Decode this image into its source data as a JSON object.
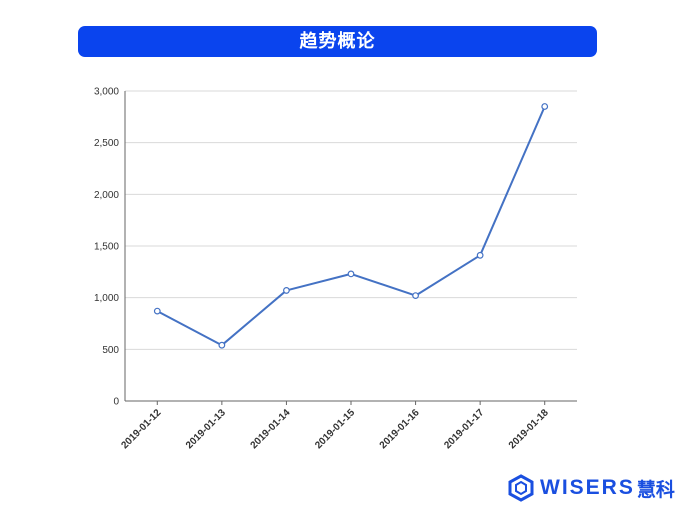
{
  "header": {
    "title": "趋势概论"
  },
  "chart_data": {
    "type": "line",
    "title": "",
    "xlabel": "",
    "ylabel": "",
    "categories": [
      "2019-01-12",
      "2019-01-13",
      "2019-01-14",
      "2019-01-15",
      "2019-01-16",
      "2019-01-17",
      "2019-01-18"
    ],
    "series": [
      {
        "values": [
          870,
          540,
          1070,
          1230,
          1020,
          1410,
          2850
        ]
      }
    ],
    "ylim": [
      0,
      3000
    ],
    "yticks": [
      0,
      500,
      1000,
      1500,
      2000,
      2500,
      3000
    ],
    "ytick_labels": [
      "0",
      "500",
      "1,000",
      "1,500",
      "2,000",
      "2,500",
      "3,000"
    ],
    "grid": true,
    "line_color": "#4472c4"
  },
  "brand": {
    "name": "WISERS",
    "cn": "慧科",
    "color": "#1a4fe0"
  }
}
